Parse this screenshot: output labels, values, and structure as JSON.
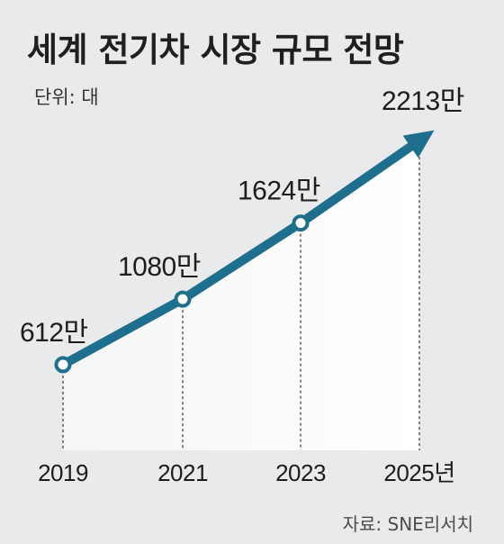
{
  "header": {
    "title": "세계 전기차 시장 규모 전망",
    "unit_label": "단위: 대"
  },
  "footer": {
    "source": "자료: SNE리서치"
  },
  "colors": {
    "background": "#e8eaeb",
    "line": "#1e6f8e",
    "area_fill": "#ffffff"
  },
  "chart_data": {
    "type": "line",
    "title": "세계 전기차 시장 규모 전망",
    "xlabel": "",
    "ylabel": "",
    "unit": "단위: 대",
    "categories": [
      "2019",
      "2021",
      "2023",
      "2025년"
    ],
    "series": [
      {
        "values": [
          6120000,
          10800000,
          16240000,
          22130000
        ],
        "value_labels": [
          "612만",
          "1080만",
          "1624만",
          "2213만"
        ]
      }
    ],
    "ylim": [
      0,
      24000000
    ],
    "grid": false,
    "legend": "none",
    "last_point_style": "arrow"
  }
}
